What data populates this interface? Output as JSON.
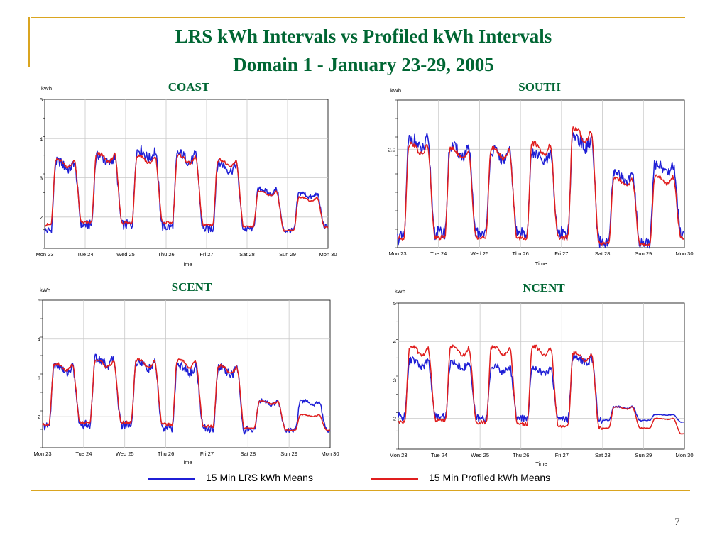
{
  "slide": {
    "title_line1": "LRS kWh Intervals vs Profiled kWh Intervals",
    "title_line2": "Domain 1 - January 23-29, 2005",
    "page_number": "7",
    "colors": {
      "frame": "#daa520",
      "title": "#006633",
      "lrs": "#1f1fd6",
      "profiled": "#e01e1e",
      "grid": "#c8c8c8"
    }
  },
  "legend": {
    "lrs_label": "15 Min LRS kWh Means",
    "profiled_label": "15 Min Profiled kWh Means"
  },
  "chart_data": [
    {
      "type": "line",
      "title": "COAST",
      "ylabel": "kWh",
      "xlabel": "Time",
      "x": [
        "Mon 23",
        "Tue 24",
        "Wed 25",
        "Thu 26",
        "Fri 27",
        "Sat 28",
        "Sun 29",
        "Mon 30"
      ],
      "yticks": [
        "2",
        "3",
        "4",
        "5"
      ],
      "ylim": [
        1.2,
        5.0
      ],
      "grid": true,
      "series": [
        {
          "name": "15 Min LRS kWh Means",
          "color": "#1f1fd6",
          "troughs": [
            1.65,
            1.8,
            1.8,
            1.75,
            1.7,
            1.7,
            1.65,
            1.75
          ],
          "peaks": [
            3.4,
            3.55,
            3.7,
            3.6,
            3.35,
            2.7,
            2.6
          ]
        },
        {
          "name": "15 Min Profiled kWh Means",
          "color": "#e01e1e",
          "troughs": [
            1.8,
            1.85,
            1.85,
            1.85,
            1.8,
            1.75,
            1.65,
            1.75
          ],
          "peaks": [
            3.45,
            3.6,
            3.55,
            3.55,
            3.45,
            2.65,
            2.5
          ]
        }
      ]
    },
    {
      "type": "line",
      "title": "SOUTH",
      "ylabel": "kWh",
      "xlabel": "Time",
      "x": [
        "Mon 23",
        "Tue 24",
        "Wed 25",
        "Thu 26",
        "Fri 27",
        "Sat 28",
        "Sun 29",
        "Mon 30"
      ],
      "yticks": [
        "2.0"
      ],
      "ylim": [
        1.0,
        2.5
      ],
      "grid": true,
      "series": [
        {
          "name": "15 Min LRS kWh Means",
          "color": "#1f1fd6",
          "troughs": [
            1.1,
            1.15,
            1.15,
            1.15,
            1.15,
            1.05,
            1.05,
            1.15
          ],
          "peaks": [
            2.1,
            2.02,
            1.98,
            1.95,
            2.12,
            1.75,
            1.85
          ]
        },
        {
          "name": "15 Min Profiled kWh Means",
          "color": "#e01e1e",
          "troughs": [
            1.1,
            1.1,
            1.1,
            1.1,
            1.1,
            1.05,
            1.03,
            1.1
          ],
          "peaks": [
            2.05,
            2.0,
            2.0,
            2.05,
            2.2,
            1.7,
            1.72
          ]
        }
      ]
    },
    {
      "type": "line",
      "title": "SCENT",
      "ylabel": "kWh",
      "xlabel": "Time",
      "x": [
        "Mon 23",
        "Tue 24",
        "Wed 25",
        "Thu 26",
        "Fri 27",
        "Sat 28",
        "Sun 29",
        "Mon 30"
      ],
      "yticks": [
        "2",
        "3",
        "4",
        "5"
      ],
      "ylim": [
        1.2,
        5.0
      ],
      "grid": true,
      "series": [
        {
          "name": "15 Min LRS kWh Means",
          "color": "#1f1fd6",
          "troughs": [
            1.75,
            1.8,
            1.8,
            1.7,
            1.7,
            1.65,
            1.65,
            1.65
          ],
          "peaks": [
            3.3,
            3.5,
            3.4,
            3.3,
            3.25,
            2.4,
            2.4
          ]
        },
        {
          "name": "15 Min Profiled kWh Means",
          "color": "#e01e1e",
          "troughs": [
            1.8,
            1.85,
            1.85,
            1.8,
            1.75,
            1.7,
            1.65,
            1.65
          ],
          "peaks": [
            3.35,
            3.45,
            3.45,
            3.45,
            3.3,
            2.4,
            2.05
          ]
        }
      ]
    },
    {
      "type": "line",
      "title": "NCENT",
      "ylabel": "kWh",
      "xlabel": "Time",
      "x": [
        "Mon 23",
        "Tue 24",
        "Wed 25",
        "Thu 26",
        "Fri 27",
        "Sat 28",
        "Sun 29",
        "Mon 30"
      ],
      "yticks": [
        "2",
        "3",
        "4",
        "5"
      ],
      "ylim": [
        1.2,
        5.0
      ],
      "grid": true,
      "series": [
        {
          "name": "15 Min LRS kWh Means",
          "color": "#1f1fd6",
          "troughs": [
            2.05,
            2.05,
            2.0,
            2.0,
            2.0,
            1.95,
            1.95,
            1.9
          ],
          "peaks": [
            3.5,
            3.45,
            3.35,
            3.3,
            3.6,
            2.3,
            2.1
          ]
        },
        {
          "name": "15 Min Profiled kWh Means",
          "color": "#e01e1e",
          "troughs": [
            1.9,
            1.95,
            1.9,
            1.85,
            1.8,
            1.75,
            1.75,
            1.6
          ],
          "peaks": [
            3.85,
            3.85,
            3.85,
            3.85,
            3.7,
            2.3,
            2.0
          ]
        }
      ]
    }
  ]
}
